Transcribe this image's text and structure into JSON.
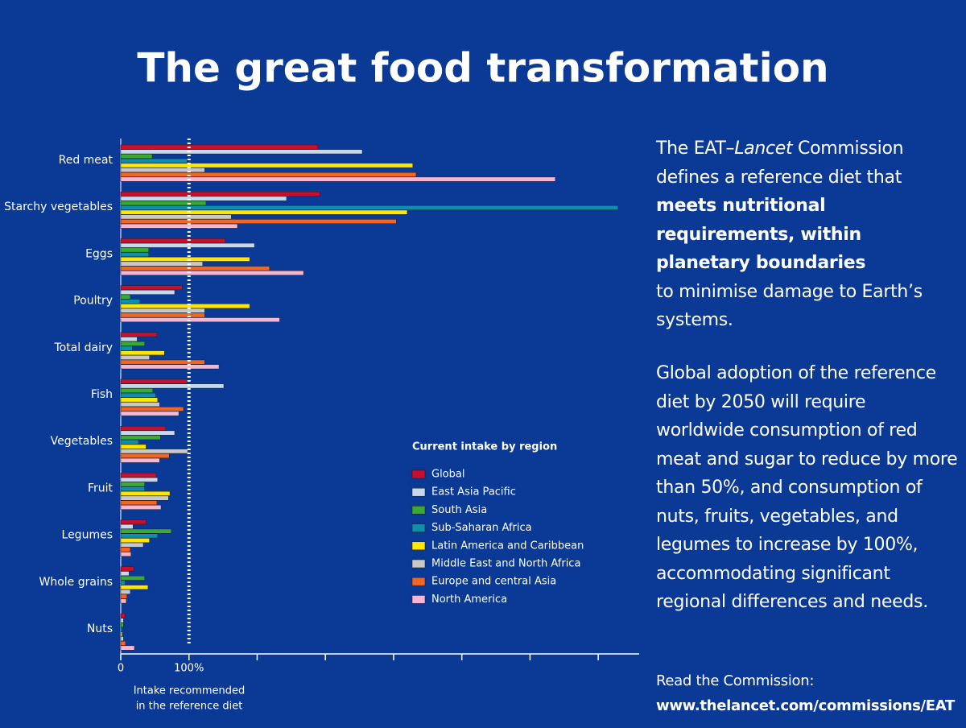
{
  "chart_data": {
    "type": "hbar",
    "title": "The great food transformation",
    "axis_note": [
      "Intake recommended",
      "in the reference diet"
    ],
    "legend_title": "Current intake by region",
    "categories": [
      "Red meat",
      "Starchy vegetables",
      "Eggs",
      "Poultry",
      "Total dairy",
      "Fish",
      "Vegetables",
      "Fruit",
      "Legumes",
      "Whole grains",
      "Nuts"
    ],
    "series": [
      {
        "name": "Global",
        "color": "#c8102e",
        "values": [
          289,
          292,
          153,
          90,
          53,
          97,
          66,
          52,
          37,
          19,
          6
        ]
      },
      {
        "name": "East Asia Pacific",
        "color": "#c6d9ec",
        "values": [
          354,
          243,
          196,
          79,
          24,
          151,
          79,
          54,
          18,
          12,
          4
        ]
      },
      {
        "name": "South Asia",
        "color": "#3aaa35",
        "values": [
          46,
          125,
          41,
          14,
          35,
          47,
          58,
          35,
          74,
          35,
          4
        ]
      },
      {
        "name": "Sub-Saharan Africa",
        "color": "#0f8fb0",
        "values": [
          97,
          729,
          41,
          28,
          17,
          51,
          26,
          35,
          54,
          6,
          2
        ]
      },
      {
        "name": "Latin America and Caribbean",
        "color": "#ffe600",
        "values": [
          428,
          420,
          189,
          189,
          64,
          54,
          37,
          72,
          42,
          40,
          2
        ]
      },
      {
        "name": "Middle East and North Africa",
        "color": "#c8c8c8",
        "values": [
          123,
          162,
          120,
          123,
          42,
          57,
          98,
          70,
          33,
          14,
          4
        ]
      },
      {
        "name": "Europe and central  Asia",
        "color": "#f26522",
        "values": [
          433,
          404,
          218,
          123,
          123,
          92,
          71,
          53,
          14,
          9,
          7
        ]
      },
      {
        "name": "North America",
        "color": "#f4b6d2",
        "values": [
          637,
          171,
          268,
          233,
          144,
          85,
          57,
          59,
          15,
          8,
          20
        ]
      }
    ],
    "xlim": [
      0,
      760
    ],
    "xticks": [
      0,
      {
        "value": 100,
        "label": "100%"
      },
      {
        "value": 200,
        "label": null
      },
      {
        "value": 300,
        "label": null
      },
      {
        "value": 400,
        "label": null
      },
      {
        "value": 500,
        "label": null
      },
      {
        "value": 600,
        "label": null
      },
      {
        "value": 700,
        "label": null
      }
    ],
    "reference_line": 100
  },
  "text": {
    "intro_before": "The EAT–",
    "intro_italic": "Lancet",
    "intro_after": " Commission defines a reference diet that",
    "intro_bold": "meets nutritional requirements, within planetary boundaries",
    "intro_end": "to minimise damage to Earth’s systems.",
    "adoption": "Global adoption of the reference diet by 2050 will require worldwide consumption of red meat and sugar to reduce by more than 50%, and consumption of nuts, fruits, vegetables, and legumes to increase by 100%, accommodating significant regional differences and needs.",
    "read_label": "Read the Commission:",
    "link": "www.thelancet.com/commissions/EAT"
  }
}
